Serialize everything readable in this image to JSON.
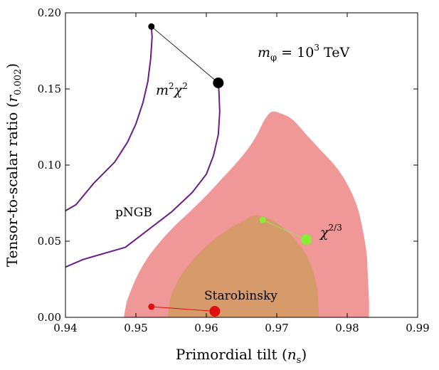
{
  "chart_data": {
    "type": "scatter",
    "xlabel": "Primordial tilt (",
    "xlabel_var": "n",
    "xlabel_sub": "s",
    "xlabel_close": ")",
    "ylabel": "Tensor-to-scalar ratio (",
    "ylabel_var": "r",
    "ylabel_sub": "0.002",
    "ylabel_close": ")",
    "xlim": [
      0.94,
      0.99
    ],
    "ylim": [
      0.0,
      0.2
    ],
    "xticks": [
      "0.94",
      "0.95",
      "0.96",
      "0.97",
      "0.98",
      "0.99"
    ],
    "yticks": [
      "0.00",
      "0.05",
      "0.10",
      "0.15",
      "0.20"
    ],
    "title_parts": {
      "m": "m",
      "sub": "φ",
      "eq": " = 10",
      "sup": "3",
      "unit": " TeV"
    },
    "contours": [
      {
        "name": "outer-95",
        "color": "#f09797",
        "points": [
          [
            0.9483,
            0.0
          ],
          [
            0.9487,
            0.01
          ],
          [
            0.9495,
            0.02
          ],
          [
            0.9505,
            0.03
          ],
          [
            0.9518,
            0.04
          ],
          [
            0.9535,
            0.05
          ],
          [
            0.9555,
            0.06
          ],
          [
            0.9578,
            0.07
          ],
          [
            0.96,
            0.08
          ],
          [
            0.962,
            0.09
          ],
          [
            0.964,
            0.1
          ],
          [
            0.9658,
            0.11
          ],
          [
            0.9672,
            0.12
          ],
          [
            0.9683,
            0.13
          ],
          [
            0.9693,
            0.135
          ],
          [
            0.9705,
            0.134
          ],
          [
            0.9722,
            0.13
          ],
          [
            0.9742,
            0.12
          ],
          [
            0.9762,
            0.11
          ],
          [
            0.9782,
            0.1
          ],
          [
            0.9797,
            0.09
          ],
          [
            0.9808,
            0.08
          ],
          [
            0.9816,
            0.07
          ],
          [
            0.9821,
            0.06
          ],
          [
            0.9825,
            0.05
          ],
          [
            0.9828,
            0.04
          ],
          [
            0.9829,
            0.03
          ],
          [
            0.983,
            0.02
          ],
          [
            0.9831,
            0.01
          ],
          [
            0.9831,
            0.0
          ]
        ]
      },
      {
        "name": "inner-68",
        "color": "#d79a6a",
        "points": [
          [
            0.9545,
            0.0
          ],
          [
            0.9548,
            0.01
          ],
          [
            0.9555,
            0.02
          ],
          [
            0.9568,
            0.03
          ],
          [
            0.9585,
            0.04
          ],
          [
            0.9608,
            0.05
          ],
          [
            0.9632,
            0.058
          ],
          [
            0.9655,
            0.064
          ],
          [
            0.9668,
            0.067
          ],
          [
            0.9682,
            0.066
          ],
          [
            0.97,
            0.062
          ],
          [
            0.9718,
            0.055
          ],
          [
            0.9733,
            0.047
          ],
          [
            0.9745,
            0.038
          ],
          [
            0.9752,
            0.03
          ],
          [
            0.9757,
            0.02
          ],
          [
            0.9759,
            0.01
          ],
          [
            0.976,
            0.0
          ]
        ]
      }
    ],
    "curves": [
      {
        "name": "m2chi2-curve-left",
        "color": "#6b1e87",
        "points": [
          [
            0.94,
            0.07
          ],
          [
            0.9415,
            0.074
          ],
          [
            0.944,
            0.088
          ],
          [
            0.947,
            0.102
          ],
          [
            0.9488,
            0.115
          ],
          [
            0.95,
            0.127
          ],
          [
            0.951,
            0.141
          ],
          [
            0.9517,
            0.155
          ],
          [
            0.9521,
            0.17
          ],
          [
            0.9523,
            0.184
          ],
          [
            0.9522,
            0.191
          ]
        ]
      },
      {
        "name": "m2chi2-curve-right",
        "color": "#6b1e87",
        "points": [
          [
            0.94,
            0.033
          ],
          [
            0.9425,
            0.038
          ],
          [
            0.9485,
            0.046
          ],
          [
            0.955,
            0.069
          ],
          [
            0.958,
            0.082
          ],
          [
            0.96,
            0.094
          ],
          [
            0.961,
            0.106
          ],
          [
            0.9617,
            0.12
          ],
          [
            0.9619,
            0.135
          ],
          [
            0.9618,
            0.147
          ],
          [
            0.9617,
            0.155
          ]
        ]
      }
    ],
    "segments": [
      {
        "name": "m2chi2",
        "label": "m",
        "label_sup": "2",
        "label_var": "χ",
        "label_sup2": "2",
        "color": "#000000",
        "line_color": "#333333",
        "start": [
          0.9522,
          0.191
        ],
        "end": [
          0.9617,
          0.154
        ]
      },
      {
        "name": "chi23",
        "label": "χ",
        "label_sup": "2/3",
        "color": "#88ee33",
        "line_color": "#99dd55",
        "start": [
          0.968,
          0.064
        ],
        "end": [
          0.9742,
          0.051
        ]
      },
      {
        "name": "starobinsky",
        "label": "Starobinsky",
        "color": "#dd1111",
        "line_color": "#dd1111",
        "start": [
          0.9522,
          0.007
        ],
        "end": [
          0.9612,
          0.004
        ]
      }
    ],
    "annotations": [
      {
        "name": "pngb-label",
        "text": "pNGB"
      }
    ]
  }
}
